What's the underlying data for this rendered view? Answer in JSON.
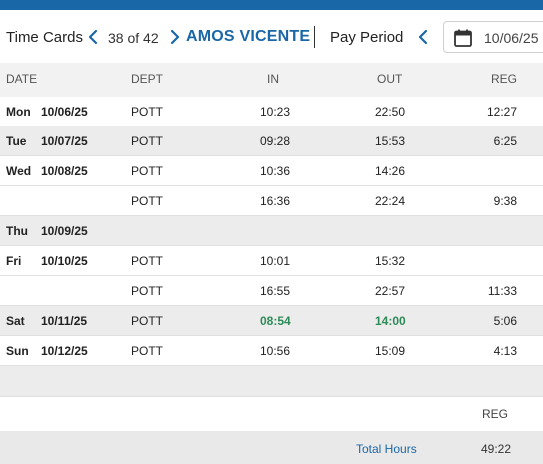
{
  "colors": {
    "accent": "#1a67a8",
    "in_out_highlight": "#2e8b57"
  },
  "toolbar": {
    "title": "Time Cards",
    "counter": "38 of 42",
    "employee_name": "AMOS VICENTE",
    "pay_period_label": "Pay Period",
    "date_value": "10/06/25",
    "icons": [
      "chevron-left-icon",
      "chevron-right-icon",
      "calendar-icon"
    ]
  },
  "table": {
    "headers": {
      "date": "DATE",
      "dept": "DEPT",
      "in": "IN",
      "out": "OUT",
      "reg": "REG"
    },
    "rows": [
      {
        "day": "Mon",
        "date": "10/06/25",
        "dept": "POTT",
        "in": "10:23",
        "out": "22:50",
        "reg": "12:27"
      },
      {
        "day": "Tue",
        "date": "10/07/25",
        "dept": "POTT",
        "in": "09:28",
        "out": "15:53",
        "reg": "6:25"
      },
      {
        "day": "Wed",
        "date": "10/08/25",
        "dept": "POTT",
        "in": "10:36",
        "out": "14:26",
        "reg": ""
      },
      {
        "day": "",
        "date": "",
        "dept": "POTT",
        "in": "16:36",
        "out": "22:24",
        "reg": "9:38"
      },
      {
        "day": "Thu",
        "date": "10/09/25",
        "dept": "",
        "in": "",
        "out": "",
        "reg": ""
      },
      {
        "day": "Fri",
        "date": "10/10/25",
        "dept": "POTT",
        "in": "10:01",
        "out": "15:32",
        "reg": ""
      },
      {
        "day": "",
        "date": "",
        "dept": "POTT",
        "in": "16:55",
        "out": "22:57",
        "reg": "11:33"
      },
      {
        "day": "Sat",
        "date": "10/11/25",
        "dept": "POTT",
        "in": "08:54",
        "out": "14:00",
        "reg": "5:06"
      },
      {
        "day": "Sun",
        "date": "10/12/25",
        "dept": "POTT",
        "in": "10:56",
        "out": "15:09",
        "reg": "4:13"
      }
    ]
  },
  "summary": {
    "reg_header": "REG",
    "total_label": "Total Hours",
    "total_value": "49:22"
  }
}
